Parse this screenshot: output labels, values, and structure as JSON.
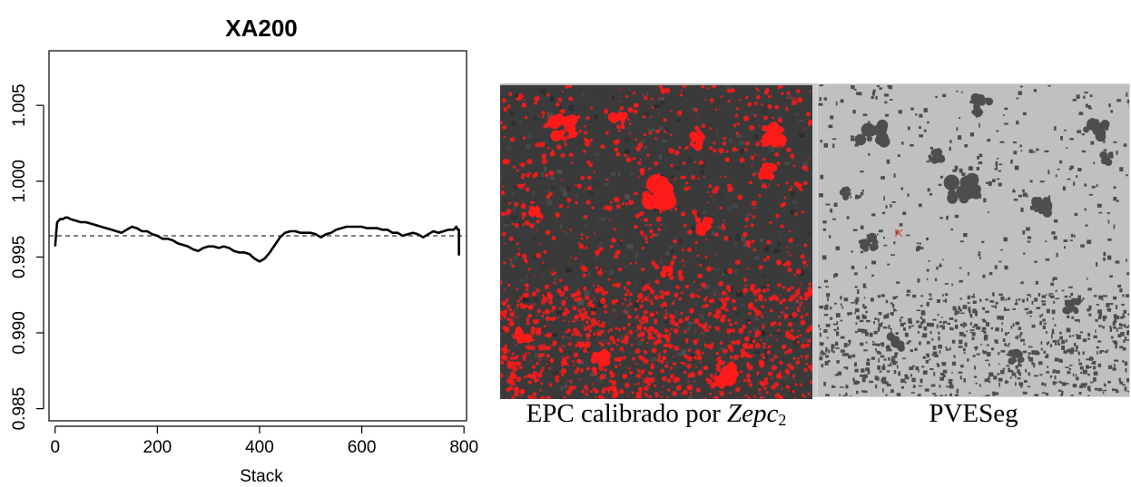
{
  "chart_data": {
    "type": "line",
    "title": "XA200",
    "xlabel": "Stack",
    "ylabel": "",
    "xlim": [
      -12,
      805
    ],
    "ylim": [
      0.9842,
      1.0086
    ],
    "xticks": [
      0,
      200,
      400,
      600,
      800
    ],
    "xtick_labels": [
      "0",
      "200",
      "400",
      "600",
      "800"
    ],
    "yticks": [
      0.985,
      0.99,
      0.995,
      1.0,
      1.005
    ],
    "ytick_labels": [
      "0.985",
      "0.990",
      "0.995",
      "1.000",
      "1.005"
    ],
    "reference_line": {
      "y": 0.9964,
      "style": "dashed"
    },
    "grid": false,
    "series": [
      {
        "x": [
          0,
          2,
          4,
          7,
          10,
          15,
          20,
          25,
          30,
          40,
          50,
          60,
          70,
          80,
          90,
          100,
          110,
          120,
          130,
          140,
          150,
          160,
          170,
          180,
          190,
          200,
          210,
          220,
          230,
          240,
          250,
          260,
          270,
          280,
          290,
          300,
          310,
          320,
          330,
          340,
          350,
          360,
          370,
          380,
          390,
          400,
          410,
          420,
          430,
          440,
          450,
          460,
          470,
          480,
          490,
          500,
          510,
          520,
          530,
          540,
          550,
          560,
          570,
          580,
          590,
          600,
          610,
          620,
          630,
          640,
          650,
          660,
          670,
          680,
          690,
          700,
          710,
          720,
          730,
          740,
          750,
          760,
          770,
          780,
          785,
          788,
          790,
          790
        ],
        "values": [
          0.9957,
          0.9966,
          0.9973,
          0.9974,
          0.9975,
          0.9975,
          0.9976,
          0.9976,
          0.9975,
          0.9974,
          0.9973,
          0.9973,
          0.9972,
          0.9971,
          0.997,
          0.9969,
          0.9968,
          0.9967,
          0.9966,
          0.9968,
          0.997,
          0.9969,
          0.9967,
          0.9967,
          0.9965,
          0.9964,
          0.9962,
          0.9962,
          0.9961,
          0.9959,
          0.9958,
          0.9957,
          0.9955,
          0.9954,
          0.9956,
          0.9957,
          0.9957,
          0.9956,
          0.9957,
          0.9956,
          0.9954,
          0.9953,
          0.9953,
          0.9952,
          0.9949,
          0.9947,
          0.9949,
          0.9953,
          0.9958,
          0.9963,
          0.9966,
          0.9967,
          0.9967,
          0.9966,
          0.9966,
          0.9966,
          0.9965,
          0.9963,
          0.9965,
          0.9966,
          0.9968,
          0.9969,
          0.997,
          0.997,
          0.997,
          0.997,
          0.9969,
          0.9969,
          0.9969,
          0.9968,
          0.9968,
          0.9966,
          0.9966,
          0.9964,
          0.9965,
          0.9966,
          0.9965,
          0.9963,
          0.9965,
          0.9967,
          0.9966,
          0.9967,
          0.9968,
          0.9968,
          0.997,
          0.9968,
          0.9968,
          0.9951
        ]
      }
    ]
  },
  "images": {
    "left_caption_text": "EPC calibrado por ",
    "left_caption_italic": "Zepc",
    "left_caption_sub": "2",
    "right_caption": "PVESeg",
    "overlay_color": "#ff1a1a",
    "left_background": "#3a3a3a",
    "right_background": "#c0c0c0",
    "right_dark_color": "#4e4e4e",
    "right_marker_color": "#e05555"
  }
}
